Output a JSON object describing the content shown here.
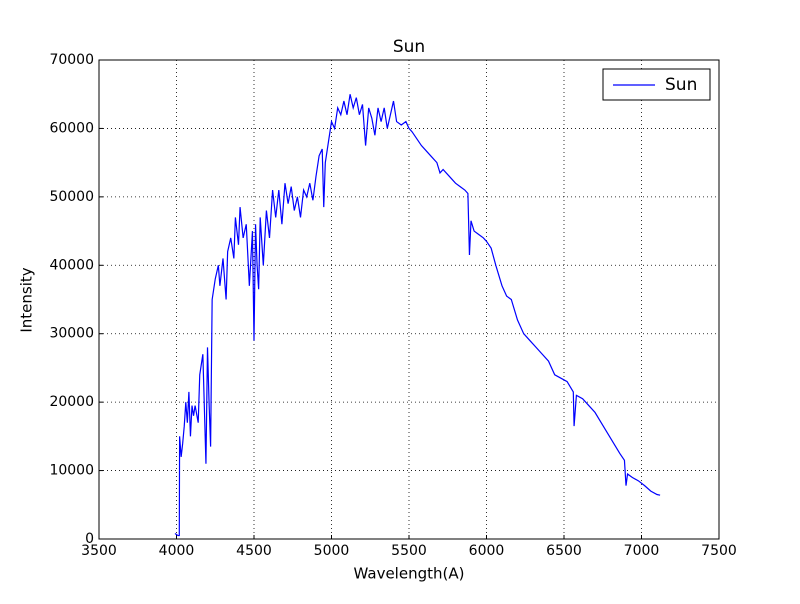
{
  "chart_data": {
    "type": "line",
    "title": "Sun",
    "xlabel": "Wavelength(A)",
    "ylabel": "Intensity",
    "x": [
      3990,
      4010,
      4018,
      4020,
      4030,
      4040,
      4050,
      4060,
      4070,
      4080,
      4090,
      4100,
      4110,
      4120,
      4140,
      4150,
      4170,
      4180,
      4190,
      4200,
      4210,
      4220,
      4230,
      4250,
      4270,
      4280,
      4300,
      4320,
      4330,
      4350,
      4370,
      4380,
      4400,
      4410,
      4430,
      4450,
      4470,
      4490,
      4500,
      4510,
      4520,
      4530,
      4540,
      4560,
      4580,
      4600,
      4620,
      4640,
      4660,
      4680,
      4700,
      4720,
      4740,
      4760,
      4780,
      4800,
      4820,
      4840,
      4860,
      4880,
      4900,
      4920,
      4940,
      4950,
      4960,
      4980,
      5000,
      5020,
      5040,
      5060,
      5080,
      5100,
      5120,
      5140,
      5160,
      5180,
      5200,
      5220,
      5240,
      5260,
      5280,
      5300,
      5320,
      5340,
      5360,
      5380,
      5400,
      5420,
      5450,
      5480,
      5500,
      5520,
      5550,
      5580,
      5600,
      5640,
      5680,
      5700,
      5720,
      5760,
      5800,
      5830,
      5860,
      5880,
      5890,
      5900,
      5920,
      5950,
      5980,
      6000,
      6030,
      6060,
      6100,
      6130,
      6160,
      6200,
      6240,
      6280,
      6320,
      6360,
      6400,
      6440,
      6480,
      6520,
      6560,
      6565,
      6580,
      6620,
      6660,
      6700,
      6740,
      6780,
      6820,
      6860,
      6890,
      6900,
      6910,
      6940,
      6980,
      7020,
      7060,
      7100,
      7120
    ],
    "series": [
      {
        "name": "Sun",
        "color": "#0000ff",
        "values": [
          800,
          500,
          500,
          15000,
          12000,
          14000,
          16500,
          20000,
          17000,
          21500,
          15000,
          19500,
          18000,
          19500,
          17000,
          24000,
          27000,
          19000,
          11000,
          28000,
          20000,
          13500,
          35000,
          38000,
          40000,
          37000,
          41000,
          35000,
          42000,
          44000,
          41000,
          47000,
          43000,
          48500,
          44000,
          46000,
          37000,
          45000,
          29000,
          46000,
          40000,
          36500,
          47000,
          40000,
          48000,
          44000,
          51000,
          47000,
          51000,
          46000,
          52000,
          49000,
          51500,
          48000,
          50000,
          47000,
          51000,
          50000,
          52000,
          49500,
          53000,
          56000,
          57000,
          48500,
          55000,
          58000,
          61000,
          60000,
          63000,
          62000,
          64000,
          62000,
          65000,
          63000,
          64500,
          62000,
          63500,
          57500,
          63000,
          61500,
          59000,
          63000,
          61000,
          63000,
          60000,
          62000,
          64000,
          61000,
          60500,
          61000,
          60000,
          59500,
          58500,
          57500,
          57000,
          56000,
          55000,
          53500,
          54000,
          53000,
          52000,
          51500,
          51000,
          50500,
          41500,
          46500,
          45000,
          44500,
          44000,
          43500,
          42500,
          40000,
          37000,
          35500,
          35000,
          32000,
          30000,
          29000,
          28000,
          27000,
          26000,
          24000,
          23500,
          23000,
          21500,
          16500,
          21000,
          20500,
          19500,
          18500,
          17000,
          15500,
          14000,
          12500,
          11500,
          7800,
          9500,
          9000,
          8500,
          7800,
          7000,
          6500,
          6400
        ]
      }
    ],
    "xlim": [
      3500,
      7500
    ],
    "xticks": [
      3500,
      4000,
      4500,
      5000,
      5500,
      6000,
      6500,
      7000,
      7500
    ],
    "ylim": [
      0,
      70000
    ],
    "yticks": [
      0,
      10000,
      20000,
      30000,
      40000,
      50000,
      60000,
      70000
    ],
    "grid": true,
    "legend": "upper right"
  }
}
